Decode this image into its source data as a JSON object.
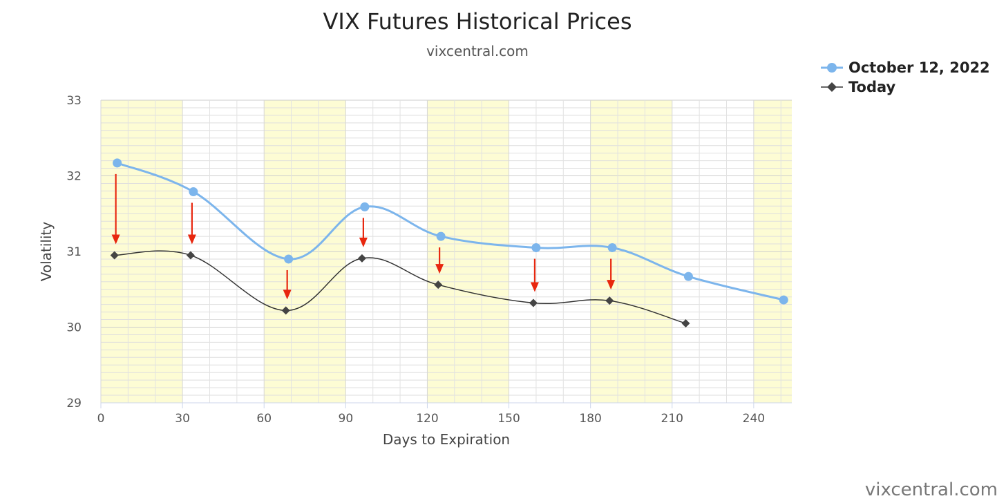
{
  "watermark": "vixcentral.com",
  "chart_data": {
    "type": "line",
    "title": "VIX Futures Historical Prices",
    "subtitle": "vixcentral.com",
    "xlabel": "Days to Expiration",
    "ylabel": "Volatility",
    "xlim": [
      0,
      254
    ],
    "ylim": [
      29,
      33
    ],
    "x_ticks": [
      0,
      30,
      60,
      90,
      120,
      150,
      180,
      210,
      240
    ],
    "y_ticks": [
      29,
      30,
      31,
      32,
      33
    ],
    "grid": true,
    "legend_position": "top-right",
    "shaded_x_bands": [
      [
        0,
        30
      ],
      [
        60,
        90
      ],
      [
        120,
        150
      ],
      [
        180,
        210
      ],
      [
        240,
        254
      ]
    ],
    "series": [
      {
        "name": "October 12, 2022",
        "color": "#7cb5ec",
        "marker": "circle",
        "x": [
          6,
          34,
          69,
          97,
          125,
          160,
          188,
          216,
          251
        ],
        "values": [
          32.17,
          31.79,
          30.9,
          31.59,
          31.2,
          31.05,
          31.05,
          30.67,
          30.36
        ]
      },
      {
        "name": "Today",
        "color": "#333333",
        "marker": "diamond",
        "x": [
          5,
          33,
          68,
          96,
          124,
          159,
          187,
          215
        ],
        "values": [
          30.95,
          30.95,
          30.22,
          30.91,
          30.56,
          30.32,
          30.35,
          30.05
        ]
      }
    ],
    "annotations": {
      "type": "down-arrows",
      "color": "#e8270f",
      "x": [
        6,
        34,
        69,
        97,
        125,
        160,
        188
      ]
    }
  }
}
